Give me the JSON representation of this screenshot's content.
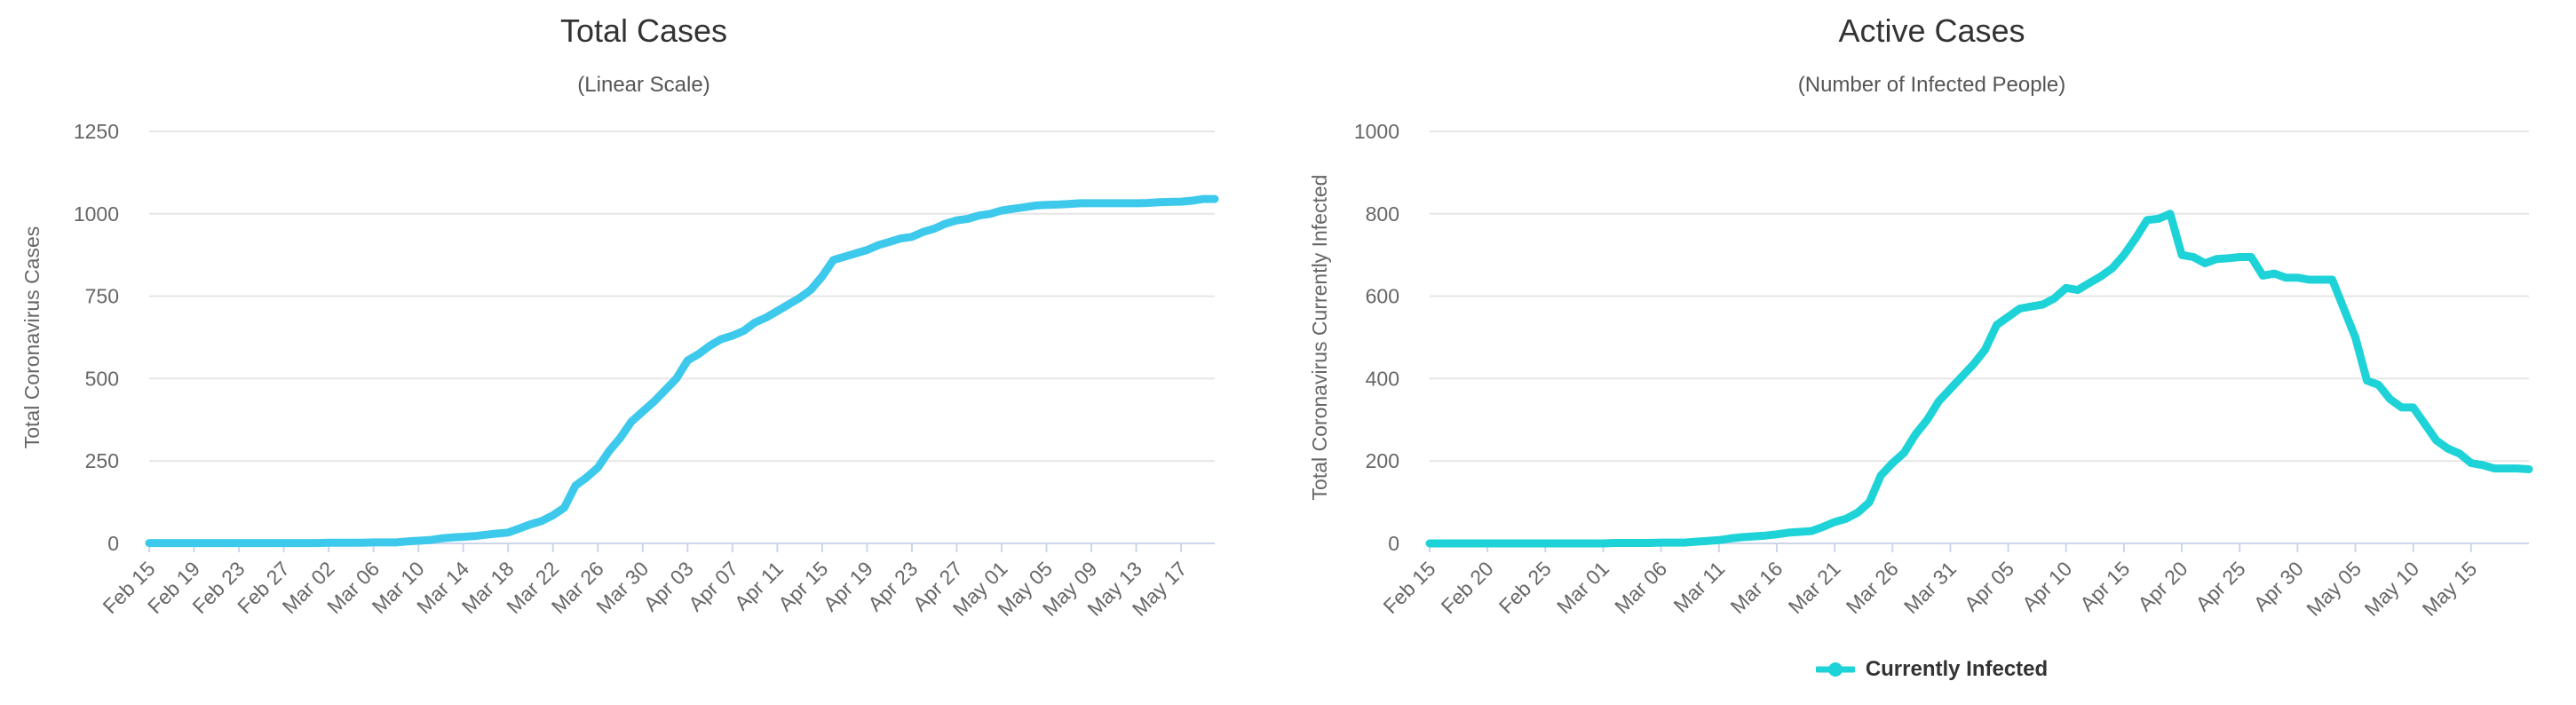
{
  "chart_data": [
    {
      "type": "line",
      "title": "Total Cases",
      "subtitle": "(Linear Scale)",
      "ylabel": "Total Coronavirus Cases",
      "xlabel": "",
      "ylim": [
        0,
        1250
      ],
      "yticks": [
        0,
        250,
        500,
        750,
        1000,
        1250
      ],
      "grid": true,
      "color": "#3dc9ec",
      "categories": [
        "Feb 15",
        "Feb 16",
        "Feb 17",
        "Feb 18",
        "Feb 19",
        "Feb 20",
        "Feb 21",
        "Feb 22",
        "Feb 23",
        "Feb 24",
        "Feb 25",
        "Feb 26",
        "Feb 27",
        "Feb 28",
        "Feb 29",
        "Mar 01",
        "Mar 02",
        "Mar 03",
        "Mar 04",
        "Mar 05",
        "Mar 06",
        "Mar 07",
        "Mar 08",
        "Mar 09",
        "Mar 10",
        "Mar 11",
        "Mar 12",
        "Mar 13",
        "Mar 14",
        "Mar 15",
        "Mar 16",
        "Mar 17",
        "Mar 18",
        "Mar 19",
        "Mar 20",
        "Mar 21",
        "Mar 22",
        "Mar 23",
        "Mar 24",
        "Mar 25",
        "Mar 26",
        "Mar 27",
        "Mar 28",
        "Mar 29",
        "Mar 30",
        "Mar 31",
        "Apr 01",
        "Apr 02",
        "Apr 03",
        "Apr 04",
        "Apr 05",
        "Apr 06",
        "Apr 07",
        "Apr 08",
        "Apr 09",
        "Apr 10",
        "Apr 11",
        "Apr 12",
        "Apr 13",
        "Apr 14",
        "Apr 15",
        "Apr 16",
        "Apr 17",
        "Apr 18",
        "Apr 19",
        "Apr 20",
        "Apr 21",
        "Apr 22",
        "Apr 23",
        "Apr 24",
        "Apr 25",
        "Apr 26",
        "Apr 27",
        "Apr 28",
        "Apr 29",
        "Apr 30",
        "May 01",
        "May 02",
        "May 03",
        "May 04",
        "May 05",
        "May 06",
        "May 07",
        "May 08",
        "May 09",
        "May 10",
        "May 11",
        "May 12",
        "May 13",
        "May 14",
        "May 15",
        "May 16",
        "May 17",
        "May 18",
        "May 19",
        "May 20"
      ],
      "tick_labels": [
        "Feb 15",
        "Feb 19",
        "Feb 23",
        "Feb 27",
        "Mar 02",
        "Mar 06",
        "Mar 10",
        "Mar 14",
        "Mar 18",
        "Mar 22",
        "Mar 26",
        "Mar 30",
        "Apr 03",
        "Apr 07",
        "Apr 11",
        "Apr 15",
        "Apr 19",
        "Apr 23",
        "Apr 27",
        "May 01",
        "May 05",
        "May 09",
        "May 13",
        "May 17"
      ],
      "tick_step": 4,
      "series": [
        {
          "values": [
            1,
            1,
            1,
            1,
            1,
            1,
            1,
            1,
            1,
            1,
            1,
            1,
            1,
            1,
            1,
            1,
            2,
            2,
            2,
            2,
            3,
            3,
            3,
            6,
            8,
            10,
            15,
            18,
            20,
            22,
            26,
            30,
            33,
            45,
            58,
            68,
            85,
            108,
            175,
            200,
            230,
            280,
            320,
            370,
            400,
            430,
            465,
            500,
            555,
            575,
            600,
            620,
            630,
            645,
            670,
            685,
            705,
            725,
            745,
            770,
            810,
            860,
            870,
            880,
            890,
            905,
            915,
            925,
            930,
            945,
            955,
            970,
            980,
            985,
            995,
            1000,
            1010,
            1015,
            1020,
            1025,
            1027,
            1028,
            1030,
            1032,
            1032,
            1032,
            1032,
            1032,
            1032,
            1033,
            1035,
            1036,
            1037,
            1040,
            1045,
            1045
          ]
        }
      ]
    },
    {
      "type": "line",
      "title": "Active Cases",
      "subtitle": "(Number of Infected People)",
      "ylabel": "Total Coronavirus Currently Infected",
      "xlabel": "",
      "ylim": [
        0,
        1000
      ],
      "yticks": [
        0,
        200,
        400,
        600,
        800,
        1000
      ],
      "grid": true,
      "color": "#1dd3d8",
      "categories": [
        "Feb 15",
        "Feb 16",
        "Feb 17",
        "Feb 18",
        "Feb 19",
        "Feb 20",
        "Feb 21",
        "Feb 22",
        "Feb 23",
        "Feb 24",
        "Feb 25",
        "Feb 26",
        "Feb 27",
        "Feb 28",
        "Feb 29",
        "Mar 01",
        "Mar 02",
        "Mar 03",
        "Mar 04",
        "Mar 05",
        "Mar 06",
        "Mar 07",
        "Mar 08",
        "Mar 09",
        "Mar 10",
        "Mar 11",
        "Mar 12",
        "Mar 13",
        "Mar 14",
        "Mar 15",
        "Mar 16",
        "Mar 17",
        "Mar 18",
        "Mar 19",
        "Mar 20",
        "Mar 21",
        "Mar 22",
        "Mar 23",
        "Mar 24",
        "Mar 25",
        "Mar 26",
        "Mar 27",
        "Mar 28",
        "Mar 29",
        "Mar 30",
        "Mar 31",
        "Apr 01",
        "Apr 02",
        "Apr 03",
        "Apr 04",
        "Apr 05",
        "Apr 06",
        "Apr 07",
        "Apr 08",
        "Apr 09",
        "Apr 10",
        "Apr 11",
        "Apr 12",
        "Apr 13",
        "Apr 14",
        "Apr 15",
        "Apr 16",
        "Apr 17",
        "Apr 18",
        "Apr 19",
        "Apr 20",
        "Apr 21",
        "Apr 22",
        "Apr 23",
        "Apr 24",
        "Apr 25",
        "Apr 26",
        "Apr 27",
        "Apr 28",
        "Apr 29",
        "Apr 30",
        "May 01",
        "May 02",
        "May 03",
        "May 04",
        "May 05",
        "May 06",
        "May 07",
        "May 08",
        "May 09",
        "May 10",
        "May 11",
        "May 12",
        "May 13",
        "May 14",
        "May 15",
        "May 16",
        "May 17",
        "May 18",
        "May 19",
        "May 20"
      ],
      "tick_labels": [
        "Feb 15",
        "Feb 20",
        "Feb 25",
        "Mar 01",
        "Mar 06",
        "Mar 11",
        "Mar 16",
        "Mar 21",
        "Mar 26",
        "Mar 31",
        "Apr 05",
        "Apr 10",
        "Apr 15",
        "Apr 20",
        "Apr 25",
        "Apr 30",
        "May 05",
        "May 10",
        "May 15"
      ],
      "tick_step": 5,
      "legend_position": "bottom-center",
      "series": [
        {
          "name": "Currently Infected",
          "values": [
            0,
            0,
            0,
            0,
            0,
            0,
            0,
            0,
            0,
            0,
            0,
            0,
            0,
            0,
            0,
            0,
            1,
            1,
            1,
            1,
            2,
            2,
            2,
            4,
            6,
            8,
            12,
            15,
            17,
            19,
            22,
            26,
            28,
            30,
            40,
            52,
            60,
            75,
            100,
            165,
            195,
            220,
            265,
            300,
            345,
            375,
            405,
            435,
            470,
            530,
            550,
            570,
            575,
            580,
            595,
            620,
            615,
            632,
            648,
            668,
            700,
            740,
            785,
            788,
            800,
            700,
            695,
            680,
            690,
            692,
            695,
            695,
            650,
            655,
            645,
            645,
            640,
            640,
            640,
            570,
            500,
            395,
            385,
            350,
            330,
            330,
            290,
            250,
            230,
            218,
            195,
            190,
            182,
            182,
            182,
            180
          ]
        }
      ]
    }
  ]
}
